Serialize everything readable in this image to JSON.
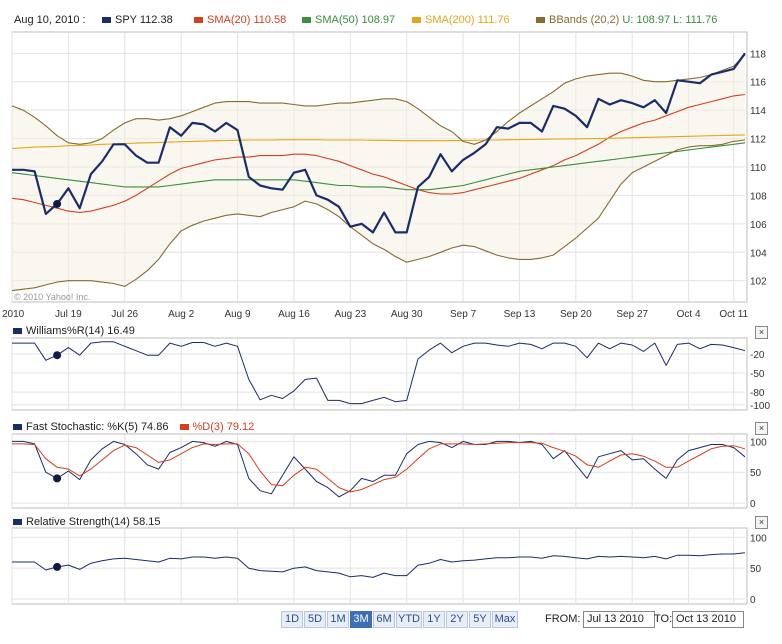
{
  "legend": {
    "date": "Aug 10, 2010 :",
    "items": [
      {
        "label": "SPY",
        "value": "112.38",
        "color": "#1a2d6b"
      },
      {
        "label": "SMA(20)",
        "value": "110.58",
        "color": "#d2401e"
      },
      {
        "label": "SMA(50)",
        "value": "108.97",
        "color": "#3a8f3a"
      },
      {
        "label": "SMA(200)",
        "value": "111.76",
        "color": "#e8a417"
      },
      {
        "label": "BBands (20,2)",
        "value": "U: 108.97  L: 111.76",
        "color": "#8a6a2e"
      }
    ]
  },
  "panels": {
    "williams": {
      "label": "Williams%R(14)",
      "value": "16.49"
    },
    "stoch": {
      "label_k": "Fast Stochastic: %K(5)",
      "value_k": "74.86",
      "label_d": "%D(3)",
      "value_d": "79.12"
    },
    "rs": {
      "label": "Relative Strength(14)",
      "value": "58.15"
    }
  },
  "close_label": "×",
  "copyright": "© 2010 Yahoo! Inc.",
  "controls": {
    "ranges": [
      "1D",
      "5D",
      "1M",
      "3M",
      "6M",
      "YTD",
      "1Y",
      "2Y",
      "5Y",
      "Max"
    ],
    "active": "3M",
    "from_label": "FROM:",
    "from_value": "Jul 13 2010",
    "to_label": "TO:",
    "to_value": "Oct 13 2010"
  },
  "chart_data": [
    {
      "type": "line",
      "title": "SPY price with SMA(20), SMA(50), SMA(200), BBands(20,2)",
      "x_tick_labels": [
        "2010",
        "Jul 19",
        "Jul 26",
        "Aug 2",
        "Aug 9",
        "Aug 16",
        "Aug 23",
        "Aug 30",
        "Sep 7",
        "Sep 13",
        "Sep 20",
        "Sep 27",
        "Oct 4",
        "Oct 11"
      ],
      "y_ticks": [
        102,
        104,
        106,
        108,
        110,
        112,
        114,
        116,
        118
      ],
      "ylim": [
        100.5,
        119.5
      ],
      "grid": true,
      "series": [
        {
          "name": "SPY",
          "color": "#1a2d6b",
          "values": [
            109.8,
            109.8,
            109.7,
            106.7,
            107.4,
            108.5,
            107.1,
            109.5,
            110.4,
            111.6,
            111.6,
            110.8,
            110.3,
            110.3,
            112.8,
            112.2,
            113.1,
            113.0,
            112.5,
            113.1,
            112.6,
            109.3,
            108.7,
            108.5,
            108.4,
            109.6,
            109.8,
            108.0,
            107.7,
            107.2,
            105.8,
            106.0,
            105.4,
            106.8,
            105.4,
            105.4,
            108.6,
            109.3,
            110.9,
            109.7,
            110.5,
            111.0,
            111.6,
            112.8,
            112.7,
            113.1,
            113.1,
            112.5,
            114.3,
            114.1,
            113.6,
            112.8,
            114.8,
            114.4,
            114.7,
            114.5,
            114.2,
            114.7,
            113.8,
            116.1,
            116.0,
            115.9,
            116.5,
            116.7,
            116.9,
            118.0
          ]
        },
        {
          "name": "SMA(20)",
          "color": "#d2401e",
          "values": [
            107.8,
            107.7,
            107.5,
            107.3,
            107.1,
            106.9,
            106.8,
            106.9,
            107.1,
            107.3,
            107.6,
            108.0,
            108.5,
            109.0,
            109.5,
            109.9,
            110.1,
            110.3,
            110.5,
            110.6,
            110.7,
            110.7,
            110.8,
            110.8,
            110.8,
            110.9,
            110.9,
            110.8,
            110.6,
            110.4,
            110.1,
            109.8,
            109.5,
            109.3,
            109.0,
            108.7,
            108.4,
            108.2,
            108.1,
            108.1,
            108.2,
            108.4,
            108.6,
            108.8,
            109.0,
            109.2,
            109.5,
            109.8,
            110.1,
            110.5,
            110.8,
            111.2,
            111.6,
            112.1,
            112.5,
            112.8,
            113.1,
            113.3,
            113.6,
            113.9,
            114.2,
            114.4,
            114.6,
            114.8,
            115.0,
            115.1
          ]
        },
        {
          "name": "SMA(50)",
          "color": "#3a8f3a",
          "values": [
            109.6,
            109.5,
            109.4,
            109.3,
            109.2,
            109.1,
            109.0,
            108.9,
            108.8,
            108.7,
            108.6,
            108.6,
            108.6,
            108.6,
            108.7,
            108.8,
            108.9,
            109.0,
            109.1,
            109.1,
            109.1,
            109.1,
            109.1,
            109.1,
            109.1,
            109.1,
            109.0,
            108.9,
            108.8,
            108.7,
            108.7,
            108.6,
            108.6,
            108.6,
            108.5,
            108.4,
            108.4,
            108.4,
            108.5,
            108.6,
            108.7,
            108.9,
            109.1,
            109.3,
            109.5,
            109.7,
            109.8,
            109.9,
            110.0,
            110.1,
            110.2,
            110.3,
            110.4,
            110.5,
            110.6,
            110.7,
            110.8,
            110.9,
            111.0,
            111.1,
            111.2,
            111.3,
            111.4,
            111.5,
            111.6,
            111.7
          ]
        },
        {
          "name": "SMA(200)",
          "color": "#e8a417",
          "values": [
            111.3,
            111.35,
            111.4,
            111.42,
            111.45,
            111.5,
            111.52,
            111.55,
            111.6,
            111.62,
            111.65,
            111.68,
            111.7,
            111.72,
            111.75,
            111.78,
            111.8,
            111.82,
            111.85,
            111.86,
            111.88,
            111.9,
            111.9,
            111.9,
            111.92,
            111.92,
            111.92,
            111.92,
            111.9,
            111.9,
            111.9,
            111.9,
            111.88,
            111.88,
            111.86,
            111.85,
            111.85,
            111.85,
            111.85,
            111.86,
            111.87,
            111.88,
            111.9,
            111.9,
            111.92,
            111.93,
            111.94,
            111.95,
            111.96,
            111.97,
            111.98,
            111.99,
            112.0,
            112.02,
            112.04,
            112.06,
            112.08,
            112.1,
            112.12,
            112.14,
            112.16,
            112.18,
            112.2,
            112.22,
            112.24,
            112.26
          ]
        },
        {
          "name": "BBands Upper",
          "color": "#8a6a2e",
          "values": [
            114.3,
            114.0,
            113.5,
            112.9,
            112.2,
            111.7,
            111.6,
            111.7,
            112.0,
            112.6,
            113.1,
            113.4,
            113.4,
            113.3,
            113.4,
            113.6,
            113.9,
            114.2,
            114.5,
            114.6,
            114.6,
            114.6,
            114.5,
            114.5,
            114.5,
            114.4,
            114.3,
            114.3,
            114.4,
            114.5,
            114.5,
            114.6,
            114.7,
            114.8,
            114.8,
            114.6,
            114.1,
            113.5,
            112.9,
            112.5,
            111.8,
            111.6,
            111.9,
            112.5,
            113.2,
            113.8,
            114.3,
            114.8,
            115.3,
            115.9,
            116.2,
            116.4,
            116.5,
            116.6,
            116.6,
            116.4,
            116.1,
            116.0,
            116.0,
            116.1,
            116.2,
            116.3,
            116.5,
            116.8,
            117.1,
            117.9
          ]
        },
        {
          "name": "BBands Lower",
          "color": "#8a6a2e",
          "values": [
            101.3,
            101.4,
            101.5,
            101.7,
            101.9,
            102.0,
            102.0,
            102.0,
            101.9,
            101.8,
            101.6,
            102.1,
            102.7,
            103.5,
            104.6,
            105.5,
            105.9,
            106.2,
            106.4,
            106.6,
            106.7,
            106.6,
            106.5,
            106.8,
            107.0,
            107.2,
            107.6,
            107.4,
            107.0,
            106.5,
            105.8,
            105.2,
            104.6,
            104.2,
            103.7,
            103.3,
            103.5,
            103.7,
            104.0,
            104.3,
            104.5,
            104.4,
            104.1,
            103.8,
            103.6,
            103.5,
            103.5,
            103.6,
            103.8,
            104.4,
            105.0,
            105.7,
            106.4,
            107.6,
            108.8,
            109.6,
            110.0,
            110.4,
            110.8,
            111.2,
            111.4,
            111.5,
            111.5,
            111.6,
            111.8,
            111.9
          ]
        }
      ]
    },
    {
      "type": "line",
      "title": "Williams%R(14)",
      "y_ticks": [
        -20,
        -50,
        -80,
        -100
      ],
      "ylim": [
        -108,
        5
      ],
      "series": [
        {
          "name": "Williams%R(14)",
          "color": "#1a2d6b",
          "values": [
            -3,
            -3,
            -3,
            -30,
            -22,
            -10,
            -22,
            -3,
            -1,
            -1,
            -8,
            -15,
            -22,
            -22,
            -3,
            -8,
            -2,
            -2,
            -8,
            -3,
            -8,
            -60,
            -92,
            -85,
            -90,
            -78,
            -60,
            -58,
            -93,
            -93,
            -98,
            -98,
            -93,
            -88,
            -95,
            -93,
            -28,
            -14,
            -3,
            -18,
            -8,
            -3,
            -3,
            -6,
            -8,
            -3,
            -5,
            -12,
            -3,
            -3,
            -8,
            -26,
            -3,
            -12,
            -3,
            -6,
            -16,
            -3,
            -38,
            -5,
            -3,
            -12,
            -5,
            -6,
            -10,
            -15
          ]
        }
      ]
    },
    {
      "type": "line",
      "title": "Fast Stochastic %K(5) / %D(3)",
      "y_ticks": [
        100,
        50,
        0
      ],
      "ylim": [
        -8,
        112
      ],
      "series": [
        {
          "name": "%K(5)",
          "color": "#1a2d6b",
          "values": [
            100,
            100,
            96,
            50,
            40,
            52,
            38,
            70,
            88,
            100,
            95,
            80,
            62,
            55,
            82,
            90,
            100,
            98,
            92,
            100,
            95,
            40,
            20,
            15,
            45,
            75,
            55,
            35,
            25,
            10,
            20,
            40,
            35,
            45,
            45,
            80,
            95,
            100,
            98,
            90,
            100,
            95,
            95,
            100,
            100,
            98,
            100,
            95,
            72,
            85,
            62,
            40,
            75,
            80,
            85,
            70,
            72,
            55,
            40,
            70,
            85,
            90,
            95,
            95,
            90,
            75
          ]
        },
        {
          "name": "%D(3)",
          "color": "#d2401e",
          "values": [
            96,
            96,
            95,
            72,
            58,
            55,
            44,
            55,
            70,
            85,
            94,
            90,
            78,
            66,
            70,
            80,
            90,
            96,
            95,
            96,
            96,
            80,
            52,
            30,
            28,
            45,
            58,
            55,
            40,
            25,
            18,
            22,
            30,
            38,
            42,
            55,
            72,
            88,
            96,
            96,
            96,
            95,
            96,
            97,
            98,
            98,
            98,
            97,
            90,
            84,
            76,
            62,
            58,
            68,
            78,
            80,
            76,
            68,
            58,
            58,
            68,
            78,
            88,
            92,
            93,
            88
          ]
        }
      ]
    },
    {
      "type": "line",
      "title": "Relative Strength(14)",
      "y_ticks": [
        100,
        50,
        0
      ],
      "ylim": [
        -8,
        115
      ],
      "series": [
        {
          "name": "Relative Strength(14)",
          "color": "#1a2d6b",
          "values": [
            60,
            60,
            60,
            47,
            52,
            55,
            48,
            58,
            62,
            65,
            66,
            64,
            62,
            60,
            66,
            65,
            68,
            68,
            66,
            68,
            66,
            50,
            46,
            45,
            44,
            50,
            52,
            46,
            44,
            42,
            36,
            38,
            35,
            42,
            38,
            38,
            55,
            58,
            64,
            60,
            62,
            63,
            65,
            67,
            67,
            68,
            68,
            66,
            70,
            69,
            67,
            65,
            69,
            68,
            69,
            68,
            67,
            69,
            65,
            71,
            71,
            70,
            72,
            73,
            73,
            75
          ]
        }
      ]
    }
  ]
}
